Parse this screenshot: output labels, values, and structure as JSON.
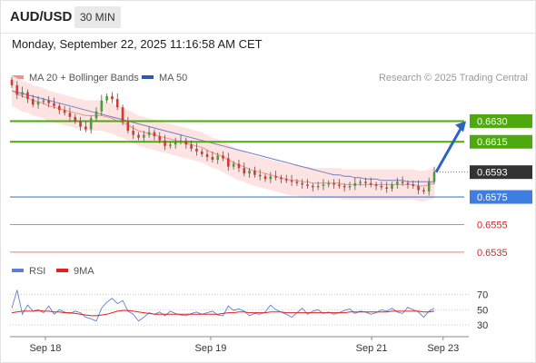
{
  "header": {
    "symbol": "AUD/USD",
    "timeframe": "30 MIN"
  },
  "datetime": "Monday, September 22, 2025 11:16:58 AM CET",
  "legend": [
    {
      "label": "MA 20 + Bollinger Bands",
      "color": "#f4908a"
    },
    {
      "label": "MA 50",
      "color": "#2e5aa8"
    }
  ],
  "research": "Research © 2025 Trading Central",
  "rsi_legend": [
    {
      "label": "RSI",
      "color": "#5b7fd9"
    },
    {
      "label": "9MA",
      "color": "#e0201f"
    }
  ],
  "colors": {
    "resistance": "#4ea90f",
    "support_blue": "#3f7de0",
    "support_red": "#f27a78",
    "candle_up": "#4c9b3a",
    "candle_down": "#d23a30",
    "band_fill": "#fde3e2",
    "ma20": "#f4908a",
    "ma50": "#6f7fc8",
    "arrow": "#2c63c0",
    "current_price_bg": "#333333"
  },
  "chart_data": [
    {
      "type": "candlestick",
      "x_axis": {
        "labels": [
          "Sep 18",
          "Sep 19",
          "Sep 21",
          "Sep 23"
        ]
      },
      "y_range": [
        0.6527,
        0.6652
      ],
      "current_price": {
        "value": 0.6593,
        "label": "0.6593"
      },
      "levels": [
        {
          "value": 0.663,
          "label": "0.6630",
          "type": "resistance"
        },
        {
          "value": 0.6615,
          "label": "0.6615",
          "type": "resistance"
        },
        {
          "value": 0.6575,
          "label": "0.6575",
          "type": "pivot"
        },
        {
          "value": 0.6555,
          "label": "0.6555",
          "type": "support"
        },
        {
          "value": 0.6535,
          "label": "0.6535",
          "type": "support"
        }
      ],
      "close_series": [
        0.6656,
        0.6649,
        0.6651,
        0.6646,
        0.6642,
        0.6644,
        0.6645,
        0.6643,
        0.6641,
        0.6638,
        0.6636,
        0.6633,
        0.663,
        0.6626,
        0.6624,
        0.6632,
        0.6637,
        0.6645,
        0.6648,
        0.6646,
        0.664,
        0.663,
        0.6623,
        0.662,
        0.6618,
        0.662,
        0.6622,
        0.6619,
        0.6616,
        0.6612,
        0.6613,
        0.6615,
        0.6616,
        0.6613,
        0.661,
        0.6608,
        0.6606,
        0.6604,
        0.6602,
        0.6605,
        0.6603,
        0.6597,
        0.6599,
        0.6596,
        0.6592,
        0.6594,
        0.6591,
        0.659,
        0.6588,
        0.659,
        0.6589,
        0.6588,
        0.6587,
        0.6586,
        0.6585,
        0.6584,
        0.6583,
        0.6582,
        0.6583,
        0.6584,
        0.6585,
        0.6584,
        0.6583,
        0.6582,
        0.6583,
        0.6585,
        0.6586,
        0.6585,
        0.6584,
        0.6583,
        0.6582,
        0.6581,
        0.6584,
        0.6586,
        0.6585,
        0.6584,
        0.6583,
        0.658,
        0.6579,
        0.6586,
        0.6593
      ],
      "ma20_series": [
        0.6652,
        0.665,
        0.6648,
        0.6647,
        0.6645,
        0.6644,
        0.6643,
        0.6641,
        0.664,
        0.6639,
        0.6638,
        0.6637,
        0.6636,
        0.6635,
        0.6634,
        0.6634,
        0.6634,
        0.6634,
        0.6633,
        0.6632,
        0.663,
        0.6629,
        0.6627,
        0.6625,
        0.6623,
        0.6622,
        0.6621,
        0.662,
        0.6619,
        0.6618,
        0.6617,
        0.6616,
        0.6615,
        0.6614,
        0.6613,
        0.6612,
        0.6611,
        0.6609,
        0.6607,
        0.6606,
        0.6604,
        0.6602,
        0.66,
        0.6598,
        0.6597,
        0.6595,
        0.6594,
        0.6593,
        0.6592,
        0.6591,
        0.659,
        0.6589,
        0.6588,
        0.6587,
        0.6587,
        0.6586,
        0.6586,
        0.6585,
        0.6585,
        0.6585,
        0.6585,
        0.6585,
        0.6585,
        0.6584,
        0.6584,
        0.6584,
        0.6584,
        0.6584,
        0.6584,
        0.6584,
        0.6584,
        0.6584,
        0.6584,
        0.6584,
        0.6584,
        0.6584,
        0.6584,
        0.6583,
        0.6583,
        0.6584,
        0.6585
      ],
      "ma50_series": [
        0.6652,
        0.6651,
        0.665,
        0.6649,
        0.6648,
        0.6647,
        0.6646,
        0.6645,
        0.6644,
        0.6643,
        0.6642,
        0.6641,
        0.664,
        0.6639,
        0.6638,
        0.6637,
        0.6636,
        0.6635,
        0.6634,
        0.6633,
        0.6632,
        0.6631,
        0.663,
        0.6629,
        0.6628,
        0.6627,
        0.6626,
        0.6625,
        0.6624,
        0.6623,
        0.6622,
        0.6621,
        0.662,
        0.6619,
        0.6618,
        0.6617,
        0.6616,
        0.6615,
        0.6614,
        0.6613,
        0.6612,
        0.6611,
        0.661,
        0.6609,
        0.6608,
        0.6607,
        0.6606,
        0.6605,
        0.6604,
        0.6603,
        0.6602,
        0.6601,
        0.66,
        0.6599,
        0.6598,
        0.6597,
        0.6596,
        0.6595,
        0.6594,
        0.6593,
        0.6592,
        0.6591,
        0.6591,
        0.659,
        0.659,
        0.6589,
        0.6589,
        0.6588,
        0.6588,
        0.6588,
        0.6587,
        0.6587,
        0.6587,
        0.6587,
        0.6587,
        0.6586,
        0.6586,
        0.6586,
        0.6586,
        0.6586,
        0.6586
      ],
      "band_width": 0.0011
    },
    {
      "type": "line",
      "name": "RSI panel",
      "y_ticks": [
        70,
        50,
        30
      ],
      "y_range": [
        18,
        85
      ],
      "series": [
        {
          "name": "RSI",
          "values": [
            52,
            76,
            44,
            56,
            48,
            50,
            46,
            55,
            44,
            50,
            47,
            45,
            48,
            46,
            40,
            38,
            35,
            52,
            60,
            65,
            58,
            62,
            48,
            44,
            35,
            40,
            46,
            44,
            47,
            42,
            48,
            45,
            43,
            42,
            45,
            47,
            44,
            46,
            48,
            43,
            42,
            55,
            49,
            51,
            48,
            42,
            45,
            44,
            47,
            56,
            50,
            47,
            44,
            40,
            46,
            52,
            44,
            48,
            50,
            45,
            47,
            44,
            46,
            49,
            51,
            45,
            48,
            47,
            44,
            46,
            50,
            48,
            52,
            47,
            45,
            53,
            50,
            47,
            40,
            48,
            52
          ]
        },
        {
          "name": "9MA",
          "values": [
            46,
            47,
            48,
            48,
            48,
            49,
            48,
            48,
            47,
            47,
            46,
            46,
            45,
            44,
            43,
            42,
            42,
            43,
            44,
            46,
            48,
            49,
            49,
            48,
            47,
            46,
            45,
            44,
            44,
            44,
            44,
            44,
            44,
            44,
            44,
            44,
            44,
            44,
            44,
            44,
            45,
            46,
            46,
            47,
            47,
            46,
            46,
            46,
            46,
            47,
            47,
            47,
            46,
            46,
            46,
            46,
            46,
            46,
            46,
            46,
            46,
            46,
            46,
            46,
            47,
            47,
            47,
            47,
            47,
            47,
            47,
            47,
            48,
            48,
            48,
            48,
            48,
            48,
            47,
            47,
            48
          ]
        }
      ]
    }
  ]
}
